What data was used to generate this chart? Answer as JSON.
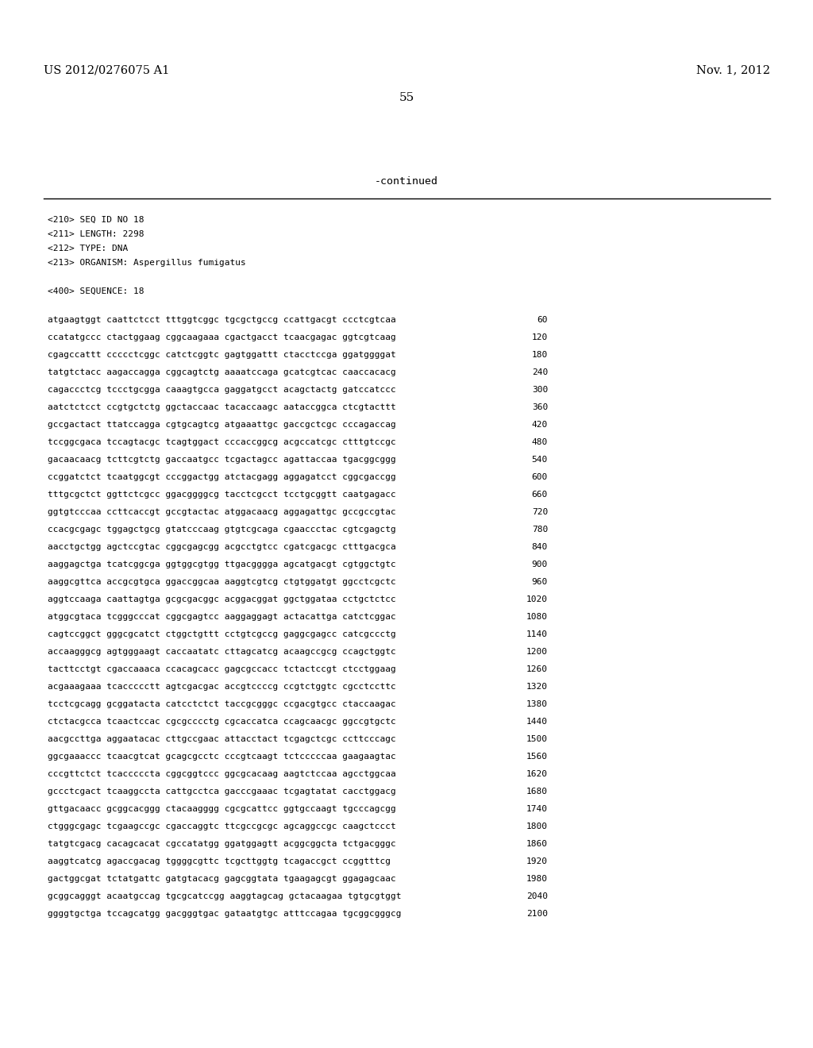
{
  "header_left": "US 2012/0276075 A1",
  "header_right": "Nov. 1, 2012",
  "page_number": "55",
  "continued_text": "-continued",
  "bg_color": "#ffffff",
  "text_color": "#000000",
  "seq_info": [
    "<210> SEQ ID NO 18",
    "<211> LENGTH: 2298",
    "<212> TYPE: DNA",
    "<213> ORGANISM: Aspergillus fumigatus"
  ],
  "seq_label": "<400> SEQUENCE: 18",
  "sequence_lines": [
    [
      "atgaagtggt caattctcct tttggtcggc tgcgctgccg ccattgacgt ccctcgtcaa",
      "60"
    ],
    [
      "ccatatgccc ctactggaag cggcaagaaa cgactgacct tcaacgagac ggtcgtcaag",
      "120"
    ],
    [
      "cgagccattt ccccctcggc catctcggtc gagtggattt ctacctccga ggatggggat",
      "180"
    ],
    [
      "tatgtctacc aagaccagga cggcagtctg aaaatccaga gcatcgtcac caaccacacg",
      "240"
    ],
    [
      "cagaccctcg tccctgcgga caaagtgcca gaggatgcct acagctactg gatccatccc",
      "300"
    ],
    [
      "aatctctcct ccgtgctctg ggctaccaac tacaccaagc aataccggca ctcgtacttt",
      "360"
    ],
    [
      "gccgactact ttatccagga cgtgcagtcg atgaaattgc gaccgctcgc cccagaccag",
      "420"
    ],
    [
      "tccggcgaca tccagtacgc tcagtggact cccaccggcg acgccatcgc ctttgtccgc",
      "480"
    ],
    [
      "gacaacaacg tcttcgtctg gaccaatgcc tcgactagcc agattaccaa tgacggcggg",
      "540"
    ],
    [
      "ccggatctct tcaatggcgt cccggactgg atctacgagg aggagatcct cggcgaccgg",
      "600"
    ],
    [
      "tttgcgctct ggttctcgcc ggacggggcg tacctcgcct tcctgcggtt caatgagacc",
      "660"
    ],
    [
      "ggtgtcccaa ccttcaccgt gccgtactac atggacaacg aggagattgc gccgccgtac",
      "720"
    ],
    [
      "ccacgcgagc tggagctgcg gtatcccaag gtgtcgcaga cgaaccctac cgtcgagctg",
      "780"
    ],
    [
      "aacctgctgg agctccgtac cggcgagcgg acgcctgtcc cgatcgacgc ctttgacgca",
      "840"
    ],
    [
      "aaggagctga tcatcggcga ggtggcgtgg ttgacgggga agcatgacgt cgtggctgtc",
      "900"
    ],
    [
      "aaggcgttca accgcgtgca ggaccggcaa aaggtcgtcg ctgtggatgt ggcctcgctc",
      "960"
    ],
    [
      "aggtccaaga caattagtga gcgcgacggc acggacggat ggctggataa cctgctctcc",
      "1020"
    ],
    [
      "atggcgtaca tcgggcccat cggcgagtcc aaggaggagt actacattga catctcggac",
      "1080"
    ],
    [
      "cagtccggct gggcgcatct ctggctgttt cctgtcgccg gaggcgagcc catcgccctg",
      "1140"
    ],
    [
      "accaagggcg agtgggaagt caccaatatc cttagcatcg acaagccgcg ccagctggtc",
      "1200"
    ],
    [
      "tacttcctgt cgaccaaaca ccacagcacc gagcgccacc tctactccgt ctcctggaag",
      "1260"
    ],
    [
      "acgaaagaaa tcaccccctt agtcgacgac accgtccccg ccgtctggtc cgcctccttc",
      "1320"
    ],
    [
      "tcctcgcagg gcggatacta catcctctct taccgcgggc ccgacgtgcc ctaccaagac",
      "1380"
    ],
    [
      "ctctacgcca tcaactccac cgcgcccctg cgcaccatca ccagcaacgc ggccgtgctc",
      "1440"
    ],
    [
      "aacgccttga aggaatacac cttgccgaac attacctact tcgagctcgc ccttcccagc",
      "1500"
    ],
    [
      "ggcgaaaccc tcaacgtcat gcagcgcctc cccgtcaagt tctcccccaa gaagaagtac",
      "1560"
    ],
    [
      "cccgttctct tcacccccta cggcggtccc ggcgcacaag aagtctccaa agcctggcaa",
      "1620"
    ],
    [
      "gccctcgact tcaaggccta cattgcctca gacccgaaac tcgagtatat cacctggacg",
      "1680"
    ],
    [
      "gttgacaacc gcggcacggg ctacaagggg cgcgcattcc ggtgccaagt tgcccagcgg",
      "1740"
    ],
    [
      "ctgggcgagc tcgaagccgc cgaccaggtc ttcgccgcgc agcaggccgc caagctccct",
      "1800"
    ],
    [
      "tatgtcgacg cacagcacat cgccatatgg ggatggagtt acggcggcta tctgacgggc",
      "1860"
    ],
    [
      "aaggtcatcg agaccgacag tggggcgttc tcgcttggtg tcagaccgct ccggtttcg",
      "1920"
    ],
    [
      "gactggcgat tctatgattc gatgtacacg gagcggtata tgaagagcgt ggagagcaac",
      "1980"
    ],
    [
      "gcggcagggt acaatgccag tgcgcatccgg aaggtagcag gctacaagaa tgtgcgtggt",
      "2040"
    ],
    [
      "ggggtgctga tccagcatgg gacgggtgac gataatgtgc atttccagaa tgcggcgggcg",
      "2100"
    ]
  ]
}
